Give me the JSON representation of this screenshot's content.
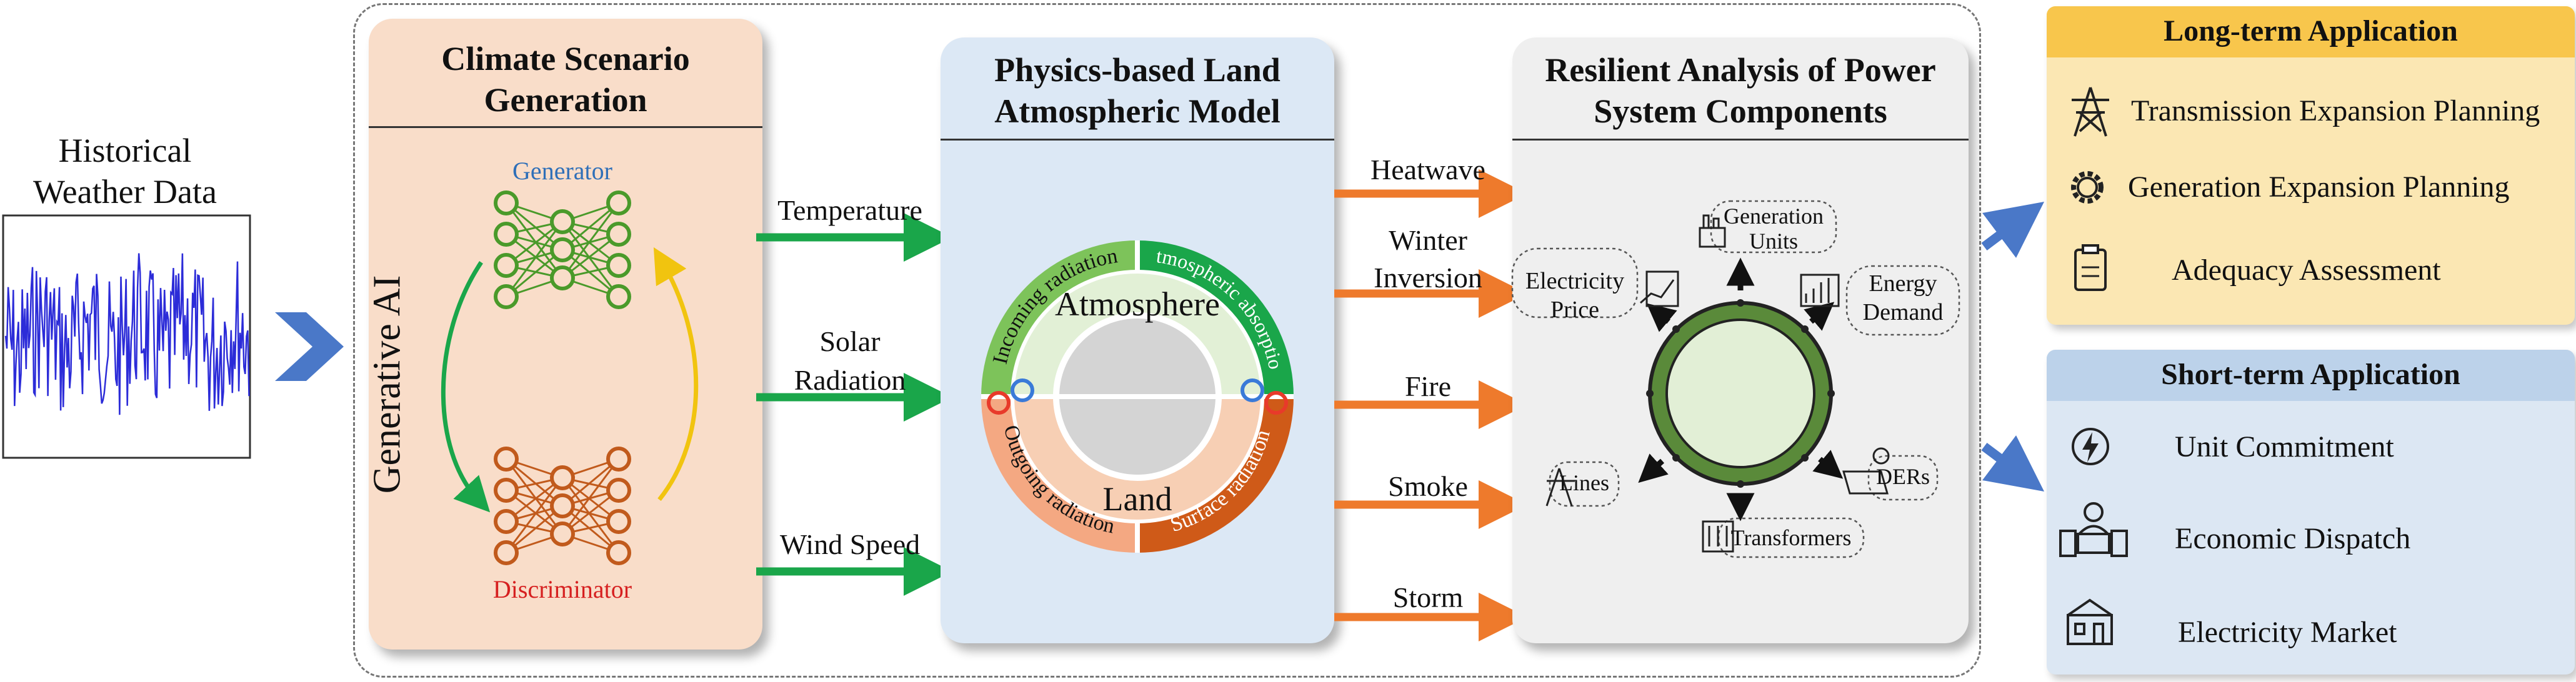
{
  "history": {
    "title_line1": "Historical",
    "title_line2": "Weather Data"
  },
  "climate": {
    "title_line1": "Climate Scenario",
    "title_line2": "Generation",
    "side_label": "Generative AI",
    "generator": "Generator",
    "discriminator": "Discriminator"
  },
  "variables": {
    "temperature": "Temperature",
    "solar_line1": "Solar",
    "solar_line2": "Radiation",
    "wind": "Wind Speed"
  },
  "physics": {
    "title_line1": "Physics-based Land",
    "title_line2": "Atmospheric Model",
    "atmosphere": "Atmosphere",
    "land": "Land",
    "incoming": "Incoming radiation",
    "absorption": "Atmospheric absorption",
    "outgoing": "Outgoing radiation",
    "surface": "Surface radiation"
  },
  "hazards": {
    "heatwave": "Heatwave",
    "winter_line1": "Winter",
    "winter_line2": "Inversion",
    "fire": "Fire",
    "smoke": "Smoke",
    "storm": "Storm"
  },
  "resilient": {
    "title_line1": "Resilient Analysis of Power",
    "title_line2": "System Components",
    "generation_line1": "Generation",
    "generation_line2": "Units",
    "energy_line1": "Energy",
    "energy_line2": "Demand",
    "price_line1": "Electricity",
    "price_line2": "Price",
    "lines": "Lines",
    "ders": "DERs",
    "transformers": "Transformers"
  },
  "long_term": {
    "title": "Long-term Application",
    "items": [
      "Transmission Expansion Planning",
      "Generation Expansion Planning",
      "Adequacy Assessment"
    ]
  },
  "short_term": {
    "title": "Short-term Application",
    "items": [
      "Unit Commitment",
      "Economic Dispatch",
      "Electricity Market"
    ]
  },
  "colors": {
    "climate_panel": "#f9ddc9",
    "physics_panel": "#dce8f5",
    "resilient_panel": "#efefef",
    "long_panel": "#fbe7b3",
    "long_header": "#f8c64c",
    "short_panel": "#dce7f3",
    "short_header": "#bcd2ea",
    "green_arrow": "#1aa64a",
    "orange_arrow": "#ee7a2c",
    "blue_chevron": "#4a78c8",
    "signal": "#2c2cd8",
    "generator_net": "#4a9a2a",
    "discriminator_net": "#c15a1c",
    "ring_green": "#5a8a3a"
  }
}
